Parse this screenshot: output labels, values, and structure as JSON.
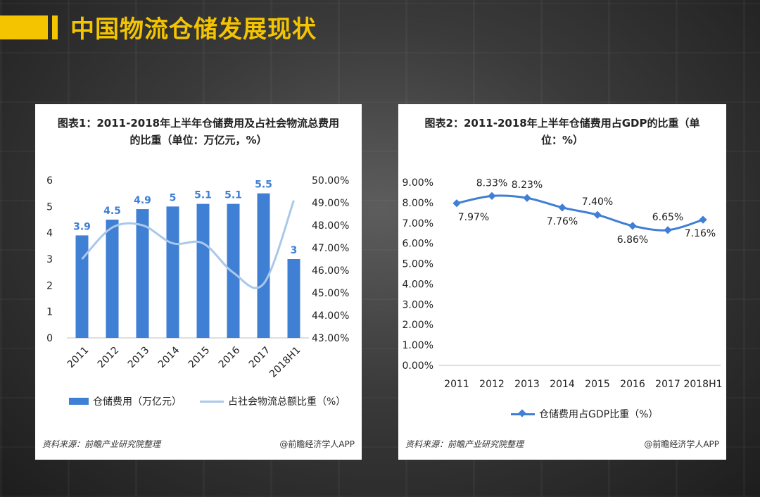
{
  "page_title": "中国物流仓储发展现状",
  "chart_data": [
    {
      "type": "bar",
      "title": "图表1：2011-2018年上半年仓储费用及占社会物流总费用的比重（单位：万亿元，%）",
      "title_line1": "图表1：2011-2018年上半年仓储费用及占社会物流总费用",
      "title_line2": "的比重（单位：万亿元，%）",
      "categories": [
        "2011",
        "2012",
        "2013",
        "2014",
        "2015",
        "2016",
        "2017",
        "2018H1"
      ],
      "series": [
        {
          "name": "仓储费用（万亿元）",
          "type": "bar",
          "axis": "left",
          "values": [
            3.9,
            4.5,
            4.9,
            5,
            5.1,
            5.1,
            5.5,
            3
          ],
          "labels": [
            "3.9",
            "4.5",
            "4.9",
            "5",
            "5.1",
            "5.1",
            "5.5",
            "3"
          ],
          "color": "#3f7fd4"
        },
        {
          "name": "占社会物流总额比重（%）",
          "type": "line",
          "axis": "right",
          "values": [
            46.5,
            47.9,
            48.0,
            47.2,
            47.2,
            45.9,
            45.4,
            49.1
          ],
          "color": "#a9c8ea"
        }
      ],
      "ylim_left": [
        0,
        6
      ],
      "yticks_left": [
        "0",
        "1",
        "2",
        "3",
        "4",
        "5",
        "6"
      ],
      "ylim_right": [
        43,
        50
      ],
      "yticks_right": [
        "43.00%",
        "44.00%",
        "45.00%",
        "46.00%",
        "47.00%",
        "48.00%",
        "49.00%",
        "50.00%"
      ],
      "legend_position": "bottom",
      "source": "资料来源：前瞻产业研究院整理",
      "credit": "@前瞻经济学人APP"
    },
    {
      "type": "line",
      "title": "图表2：2011-2018年上半年仓储费用占GDP的比重（单位：%）",
      "title_line1": "图表2：2011-2018年上半年仓储费用占GDP的比重（单",
      "title_line2": "位：%）",
      "categories": [
        "2011",
        "2012",
        "2013",
        "2014",
        "2015",
        "2016",
        "2017",
        "2018H1"
      ],
      "series": [
        {
          "name": "仓储费用占GDP比重（%）",
          "values": [
            7.97,
            8.33,
            8.23,
            7.76,
            7.4,
            6.86,
            6.65,
            7.16
          ],
          "labels": [
            "7.97%",
            "8.33%",
            "8.23%",
            "7.76%",
            "7.40%",
            "6.86%",
            "6.65%",
            "7.16%"
          ],
          "color": "#3f7fd4"
        }
      ],
      "ylim": [
        0,
        9
      ],
      "yticks": [
        "0.00%",
        "1.00%",
        "2.00%",
        "3.00%",
        "4.00%",
        "5.00%",
        "6.00%",
        "7.00%",
        "8.00%",
        "9.00%"
      ],
      "legend_position": "bottom",
      "source": "资料来源：前瞻产业研究院整理",
      "credit": "@前瞻经济学人APP"
    }
  ]
}
